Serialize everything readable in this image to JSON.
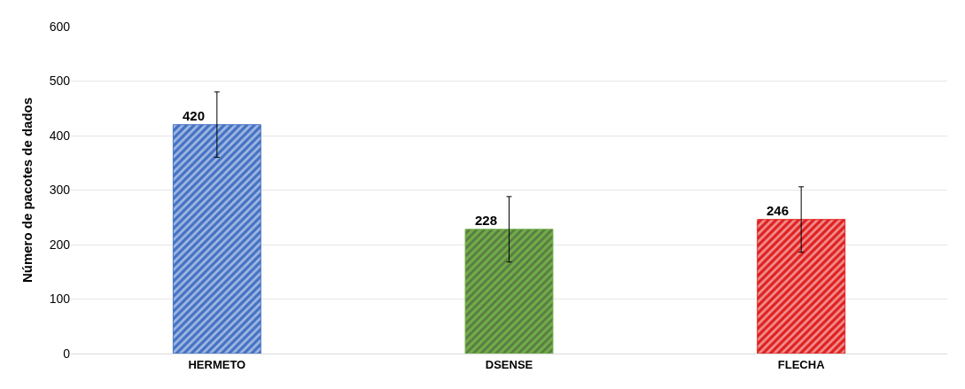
{
  "chart_data": {
    "type": "bar",
    "ylabel": "Número de pacotes de dados",
    "categories": [
      "HERMETO",
      "DSENSE",
      "FLECHA"
    ],
    "values": [
      420,
      228,
      246
    ],
    "colors": [
      "#4472c4",
      "#70ad47",
      "#e02020"
    ],
    "errors": [
      60,
      60,
      60
    ],
    "ylim": [
      0,
      600
    ],
    "yticks": [
      0,
      100,
      200,
      300,
      400,
      500,
      600
    ],
    "grid": "y",
    "data_labels": true,
    "legend": false
  }
}
